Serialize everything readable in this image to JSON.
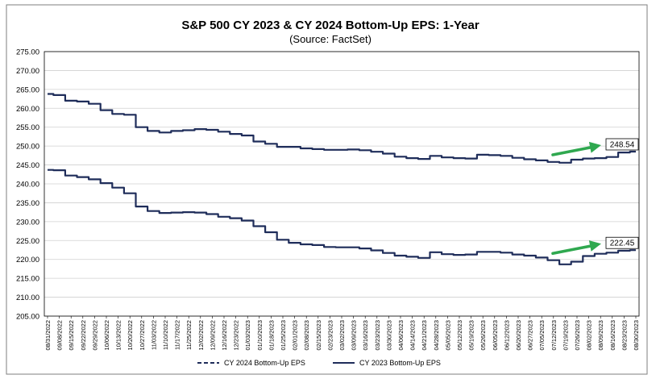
{
  "chart_data": {
    "type": "line",
    "title": "S&P 500 CY 2023 & CY 2024 Bottom-Up  EPS: 1-Year",
    "subtitle": "(Source: FactSet)",
    "xlabel": "",
    "ylabel": "",
    "ylim": [
      205,
      275
    ],
    "yticks": [
      "205.00",
      "210.00",
      "215.00",
      "220.00",
      "225.00",
      "230.00",
      "235.00",
      "240.00",
      "245.00",
      "250.00",
      "255.00",
      "260.00",
      "265.00",
      "270.00",
      "275.00"
    ],
    "grid": "horizontal",
    "legend_position": "bottom",
    "x": [
      "08/31/2022",
      "09/08/2022",
      "09/15/2022",
      "09/22/2022",
      "09/29/2022",
      "10/06/2022",
      "10/13/2022",
      "10/20/2022",
      "10/27/2022",
      "11/03/2022",
      "11/10/2022",
      "11/17/2022",
      "11/25/2022",
      "12/02/2022",
      "12/09/2022",
      "12/16/2022",
      "12/23/2022",
      "01/03/2023",
      "01/10/2023",
      "01/18/2023",
      "01/25/2023",
      "02/01/2023",
      "02/08/2023",
      "02/15/2023",
      "02/23/2023",
      "03/02/2023",
      "03/09/2023",
      "03/16/2023",
      "03/23/2023",
      "03/30/2023",
      "04/06/2023",
      "04/14/2023",
      "04/21/2023",
      "04/28/2023",
      "05/05/2023",
      "05/12/2023",
      "05/19/2023",
      "05/26/2023",
      "06/05/2023",
      "06/12/2023",
      "06/20/2023",
      "06/27/2023",
      "07/05/2023",
      "07/12/2023",
      "07/19/2023",
      "07/26/2023",
      "08/02/2023",
      "08/09/2023",
      "08/16/2023",
      "08/23/2023",
      "08/30/2023"
    ],
    "series": [
      {
        "name": "CY 2024 Bottom-Up EPS",
        "color": "#1f2d5a",
        "values": [
          263.8,
          263.5,
          262.0,
          261.8,
          261.2,
          259.5,
          258.5,
          258.3,
          255.0,
          254.0,
          253.6,
          254.0,
          254.2,
          254.5,
          254.3,
          253.8,
          253.2,
          252.8,
          251.2,
          250.6,
          249.8,
          249.8,
          249.4,
          249.2,
          249.0,
          249.0,
          249.1,
          248.9,
          248.5,
          248.0,
          247.2,
          246.8,
          246.6,
          247.4,
          247.0,
          246.8,
          246.7,
          247.7,
          247.6,
          247.4,
          246.9,
          246.5,
          246.2,
          245.8,
          245.6,
          246.4,
          246.7,
          246.8,
          247.1,
          248.3,
          248.54
        ],
        "end_label": "248.54"
      },
      {
        "name": "CY 2023 Bottom-Up EPS",
        "color": "#1f2d5a",
        "values": [
          243.7,
          243.6,
          242.2,
          241.8,
          241.2,
          240.2,
          239.0,
          237.5,
          234.0,
          232.8,
          232.3,
          232.4,
          232.5,
          232.4,
          232.0,
          231.3,
          230.9,
          230.3,
          228.8,
          227.2,
          225.2,
          224.4,
          224.0,
          223.8,
          223.3,
          223.2,
          223.2,
          222.9,
          222.4,
          221.7,
          221.0,
          220.7,
          220.4,
          221.9,
          221.4,
          221.2,
          221.3,
          222.0,
          222.0,
          221.8,
          221.3,
          221.0,
          220.5,
          219.8,
          218.7,
          219.4,
          220.9,
          221.5,
          221.8,
          222.3,
          222.45
        ],
        "end_label": "222.45"
      }
    ]
  }
}
